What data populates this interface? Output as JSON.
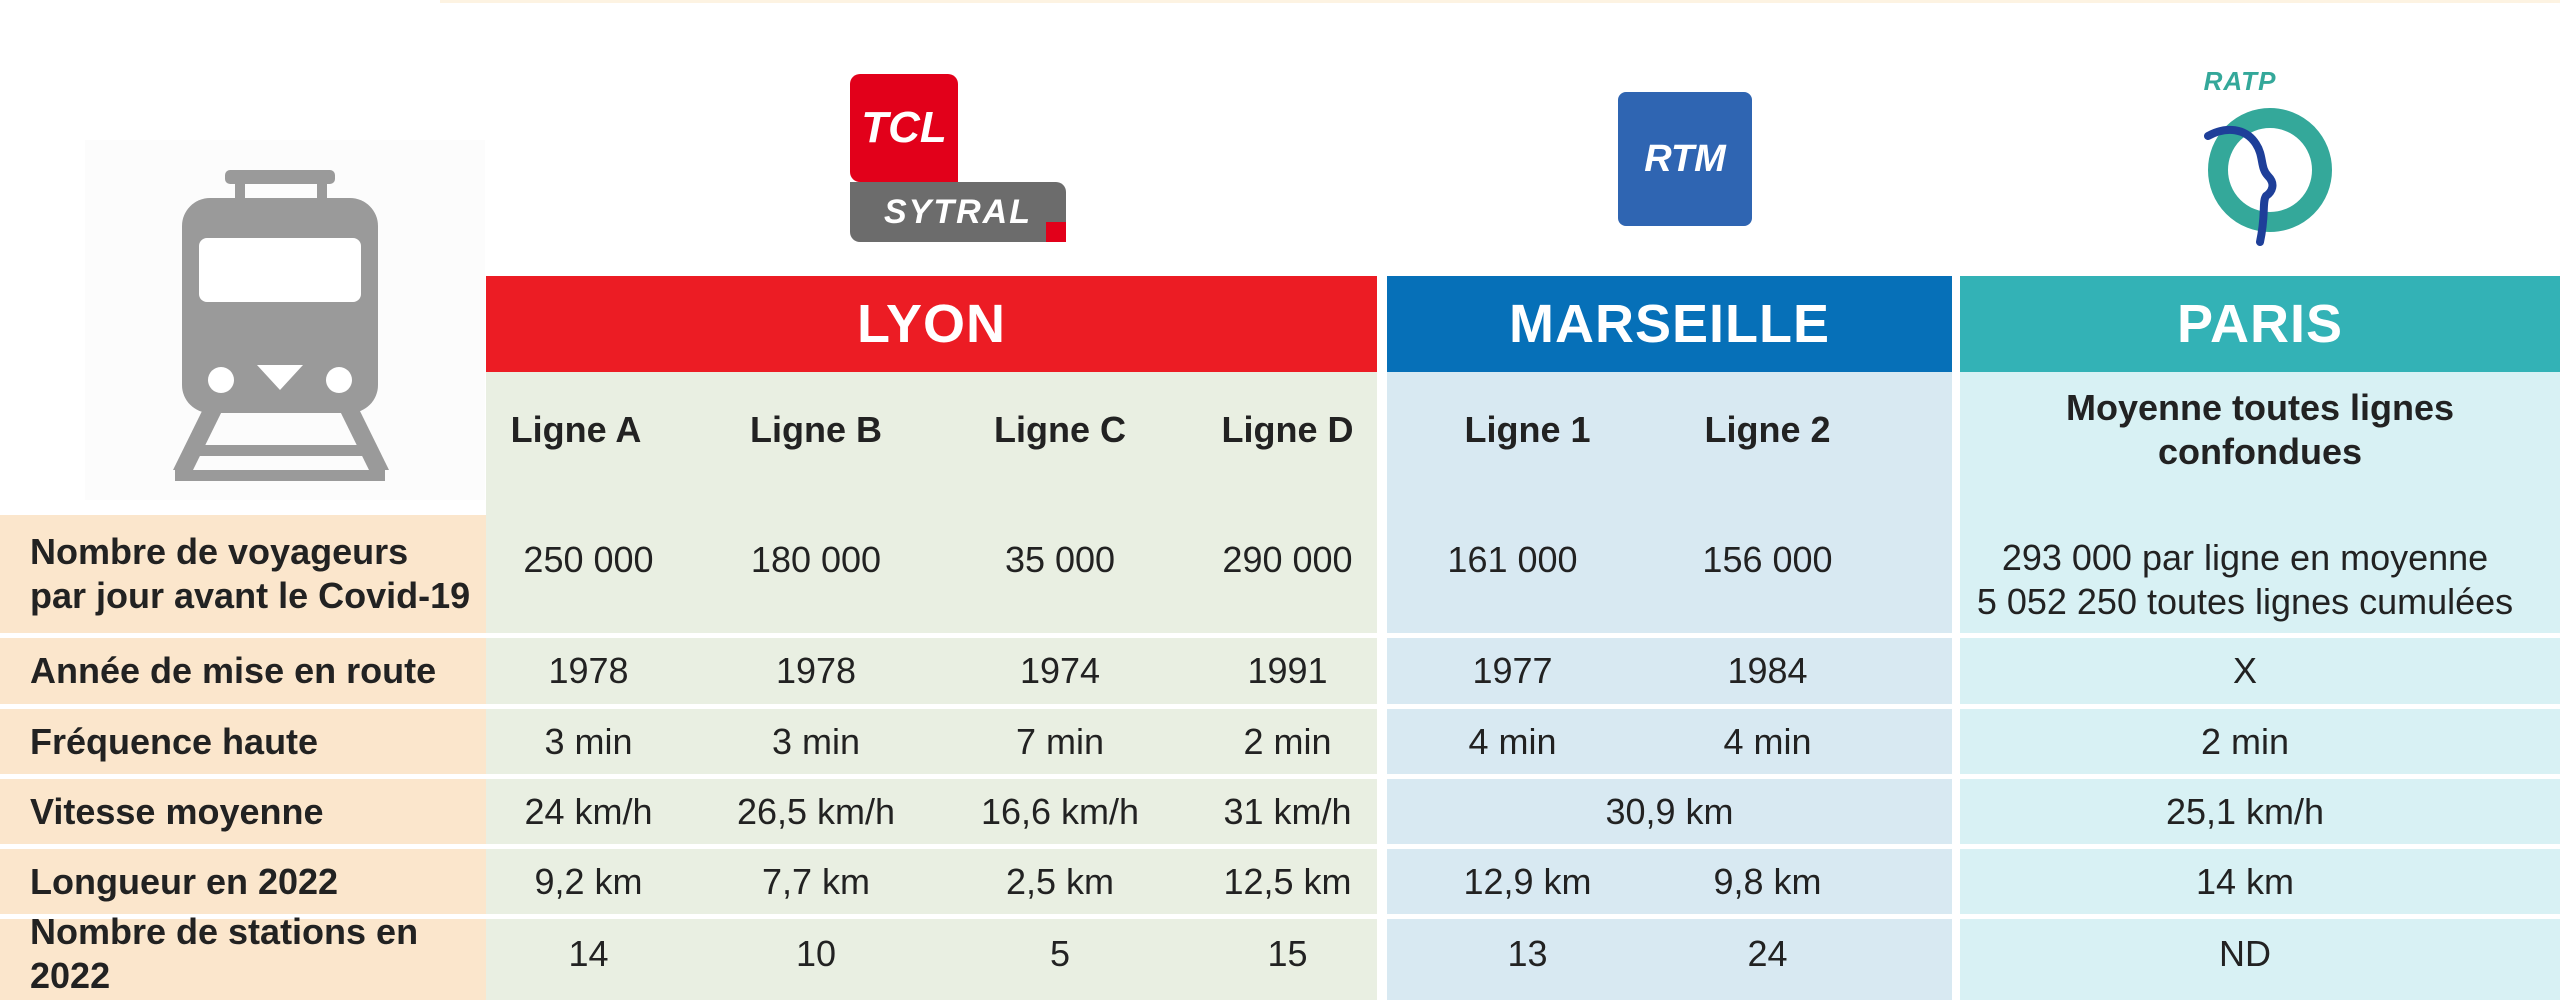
{
  "logos": {
    "tcl_mark": "TCL",
    "sytral": "SYTRAL",
    "rtm": "RTM",
    "ratp": "RATP"
  },
  "icons": {
    "train": "train-icon"
  },
  "cities": [
    {
      "name": "LYON",
      "color": "#ec1c24"
    },
    {
      "name": "MARSEILLE",
      "color": "#0670b8"
    },
    {
      "name": "PARIS",
      "color": "#33b2b6"
    }
  ],
  "subheaders": {
    "lyon": [
      "Ligne A",
      "Ligne B",
      "Ligne C",
      "Ligne D"
    ],
    "marseille": [
      "Ligne 1",
      "Ligne 2"
    ],
    "paris": "Moyenne toutes lignes confondues"
  },
  "rows": [
    {
      "label_line1": "Nombre de voyageurs",
      "label_line2": "par jour avant le Covid-19",
      "lyon": [
        "250 000",
        "180 000",
        "35 000",
        "290 000"
      ],
      "marseille": [
        "161 000",
        "156 000"
      ],
      "paris_line1": "293 000 par ligne en moyenne",
      "paris_line2": "5 052 250 toutes lignes cumulées"
    },
    {
      "label": "Année de mise en route",
      "lyon": [
        "1978",
        "1978",
        "1974",
        "1991"
      ],
      "marseille": [
        "1977",
        "1984"
      ],
      "paris": "X"
    },
    {
      "label": "Fréquence haute",
      "lyon": [
        "3 min",
        "3 min",
        "7 min",
        "2 min"
      ],
      "marseille": [
        "4 min",
        "4 min"
      ],
      "paris": "2 min"
    },
    {
      "label": "Vitesse moyenne",
      "lyon": [
        "24 km/h",
        "26,5 km/h",
        "16,6 km/h",
        "31 km/h"
      ],
      "marseille_merged": "30,9 km",
      "paris": "25,1 km/h"
    },
    {
      "label": "Longueur en 2022",
      "lyon": [
        "9,2 km",
        "7,7 km",
        "2,5 km",
        "12,5 km"
      ],
      "marseille": [
        "12,9 km",
        "9,8 km"
      ],
      "paris": "14 km"
    },
    {
      "label": "Nombre de stations en 2022",
      "lyon": [
        "14",
        "10",
        "5",
        "15"
      ],
      "marseille": [
        "13",
        "24"
      ],
      "paris": "ND"
    }
  ]
}
